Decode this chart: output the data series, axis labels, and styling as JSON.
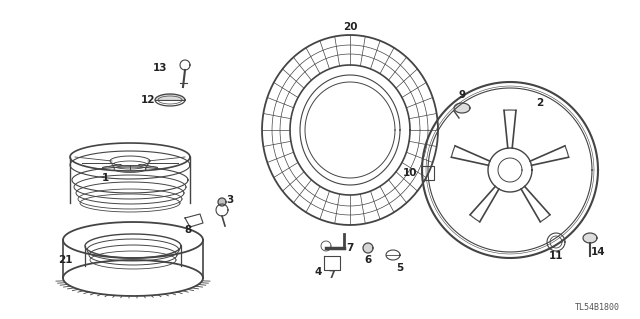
{
  "bg_color": "#ffffff",
  "line_color": "#444444",
  "label_color": "#222222",
  "diagram_code": "TL54B1800",
  "fig_w": 6.4,
  "fig_h": 3.19,
  "dpi": 100
}
